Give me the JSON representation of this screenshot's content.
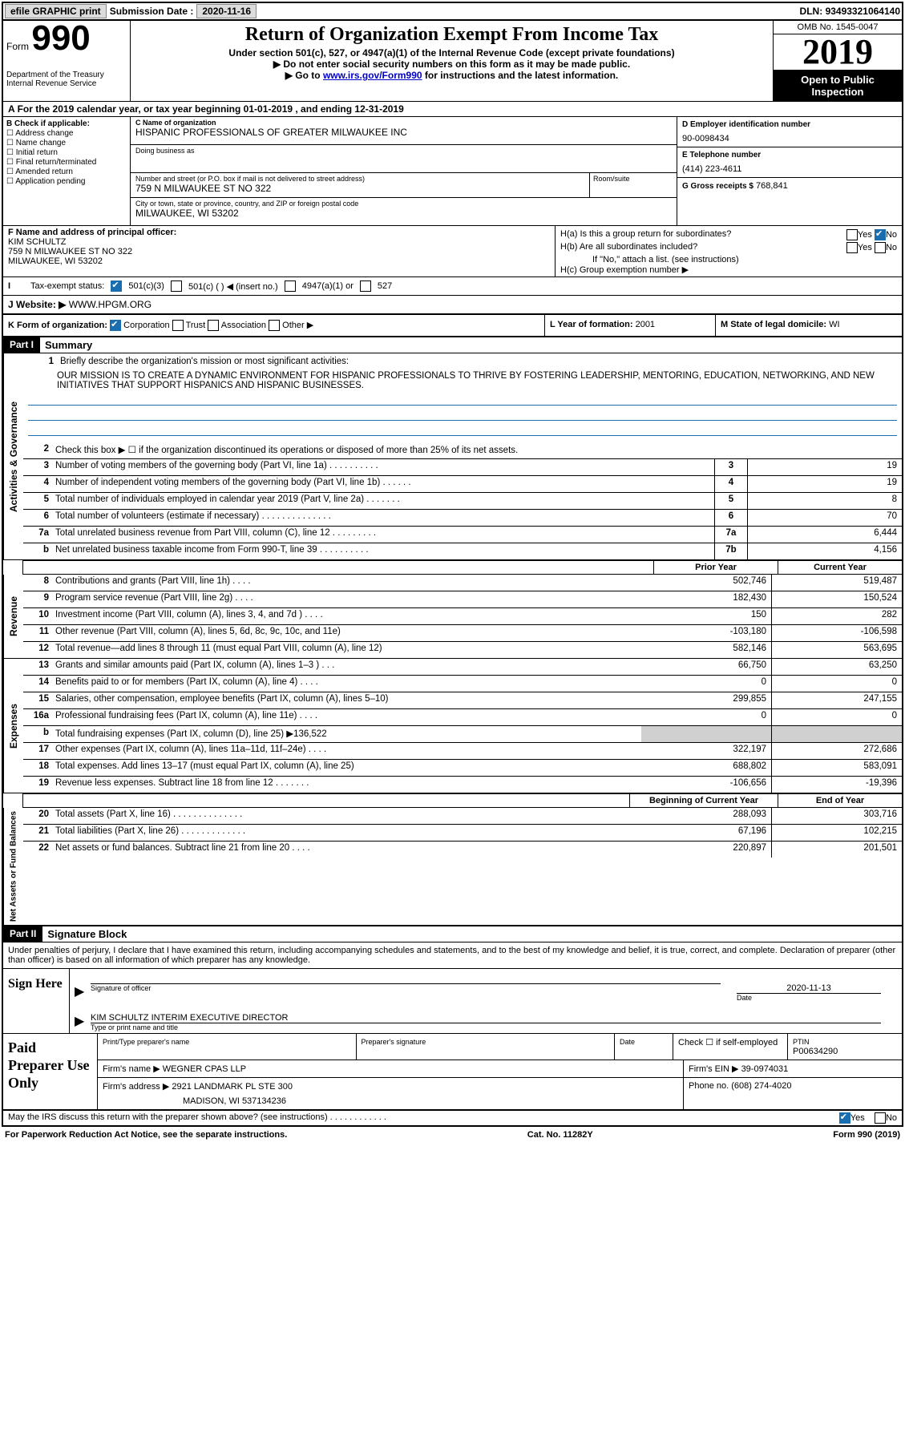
{
  "topbar": {
    "efile": "efile GRAPHIC print",
    "submission_label": "Submission Date :",
    "submission_date": "2020-11-16",
    "dln_label": "DLN:",
    "dln": "93493321064140"
  },
  "header": {
    "form_label": "Form",
    "form_num": "990",
    "dept": "Department of the Treasury\nInternal Revenue Service",
    "title": "Return of Organization Exempt From Income Tax",
    "sub1": "Under section 501(c), 527, or 4947(a)(1) of the Internal Revenue Code (except private foundations)",
    "sub2": "Do not enter social security numbers on this form as it may be made public.",
    "sub3_pre": "Go to ",
    "sub3_link": "www.irs.gov/Form990",
    "sub3_post": " for instructions and the latest information.",
    "omb": "OMB No. 1545-0047",
    "year": "2019",
    "open": "Open to Public Inspection"
  },
  "lineA": "For the 2019 calendar year, or tax year beginning 01-01-2019    , and ending 12-31-2019",
  "B": {
    "label": "B Check if applicable:",
    "opts": [
      "Address change",
      "Name change",
      "Initial return",
      "Final return/terminated",
      "Amended return",
      "Application pending"
    ]
  },
  "C": {
    "name_lbl": "C Name of organization",
    "name": "HISPANIC PROFESSIONALS OF GREATER MILWAUKEE INC",
    "dba_lbl": "Doing business as",
    "dba": "",
    "addr_lbl": "Number and street (or P.O. box if mail is not delivered to street address)",
    "addr": "759 N MILWAUKEE ST NO 322",
    "room_lbl": "Room/suite",
    "city_lbl": "City or town, state or province, country, and ZIP or foreign postal code",
    "city": "MILWAUKEE, WI  53202"
  },
  "D": {
    "lbl": "D Employer identification number",
    "val": "90-0098434"
  },
  "E": {
    "lbl": "E Telephone number",
    "val": "(414) 223-4611"
  },
  "G": {
    "lbl": "G Gross receipts $",
    "val": "768,841"
  },
  "F": {
    "lbl": "F  Name and address of principal officer:",
    "name": "KIM SCHULTZ",
    "addr1": "759 N MILWAUKEE ST NO 322",
    "addr2": "MILWAUKEE, WI  53202"
  },
  "H": {
    "a": "H(a)  Is this a group return for subordinates?",
    "b": "H(b)  Are all subordinates included?",
    "note": "If \"No,\" attach a list. (see instructions)",
    "c": "H(c)  Group exemption number ▶",
    "yes": "Yes",
    "no": "No"
  },
  "I": {
    "lbl": "Tax-exempt status:",
    "opts": [
      "501(c)(3)",
      "501(c) (  ) ◀ (insert no.)",
      "4947(a)(1) or",
      "527"
    ]
  },
  "J": {
    "lbl": "J",
    "txt": "Website: ▶",
    "val": "WWW.HPGM.ORG"
  },
  "K": {
    "lbl": "K Form of organization:",
    "opts": [
      "Corporation",
      "Trust",
      "Association",
      "Other ▶"
    ]
  },
  "L": {
    "lbl": "L Year of formation:",
    "val": "2001"
  },
  "M": {
    "lbl": "M State of legal domicile:",
    "val": "WI"
  },
  "part1": {
    "hdr": "Part I",
    "title": "Summary",
    "line1_lbl": "Briefly describe the organization's mission or most significant activities:",
    "mission": "OUR MISSION IS TO CREATE A DYNAMIC ENVIRONMENT FOR HISPANIC PROFESSIONALS TO THRIVE BY FOSTERING LEADERSHIP, MENTORING, EDUCATION, NETWORKING, AND NEW INITIATIVES THAT SUPPORT HISPANICS AND HISPANIC BUSINESSES.",
    "line2": "Check this box ▶ ☐  if the organization discontinued its operations or disposed of more than 25% of its net assets."
  },
  "gov": {
    "label": "Activities & Governance",
    "rows": [
      {
        "n": "3",
        "t": "Number of voting members of the governing body (Part VI, line 1a)   .    .    .    .    .    .    .    .    .    .",
        "box": "3",
        "v": "19"
      },
      {
        "n": "4",
        "t": "Number of independent voting members of the governing body (Part VI, line 1b)   .    .    .    .    .    .",
        "box": "4",
        "v": "19"
      },
      {
        "n": "5",
        "t": "Total number of individuals employed in calendar year 2019 (Part V, line 2a)   .    .    .    .    .    .    .",
        "box": "5",
        "v": "8"
      },
      {
        "n": "6",
        "t": "Total number of volunteers (estimate if necessary)    .    .    .    .    .    .    .    .    .    .    .    .    .    .",
        "box": "6",
        "v": "70"
      },
      {
        "n": "7a",
        "t": "Total unrelated business revenue from Part VIII, column (C), line 12   .    .    .    .    .    .    .    .    .",
        "box": "7a",
        "v": "6,444"
      },
      {
        "n": "b",
        "t": "Net unrelated business taxable income from Form 990-T, line 39    .    .    .    .    .    .    .    .    .    .",
        "box": "7b",
        "v": "4,156"
      }
    ]
  },
  "colhdrs": {
    "prior": "Prior Year",
    "current": "Current Year"
  },
  "rev": {
    "label": "Revenue",
    "rows": [
      {
        "n": "8",
        "t": "Contributions and grants (Part VIII, line 1h)   .    .    .    .",
        "p": "502,746",
        "c": "519,487"
      },
      {
        "n": "9",
        "t": "Program service revenue (Part VIII, line 2g)    .    .    .    .",
        "p": "182,430",
        "c": "150,524"
      },
      {
        "n": "10",
        "t": "Investment income (Part VIII, column (A), lines 3, 4, and 7d )   .    .    .    .",
        "p": "150",
        "c": "282"
      },
      {
        "n": "11",
        "t": "Other revenue (Part VIII, column (A), lines 5, 6d, 8c, 9c, 10c, and 11e)",
        "p": "-103,180",
        "c": "-106,598"
      },
      {
        "n": "12",
        "t": "Total revenue—add lines 8 through 11 (must equal Part VIII, column (A), line 12)",
        "p": "582,146",
        "c": "563,695"
      }
    ]
  },
  "exp": {
    "label": "Expenses",
    "rows": [
      {
        "n": "13",
        "t": "Grants and similar amounts paid (Part IX, column (A), lines 1–3 )   .    .    .",
        "p": "66,750",
        "c": "63,250"
      },
      {
        "n": "14",
        "t": "Benefits paid to or for members (Part IX, column (A), line 4)   .    .    .    .",
        "p": "0",
        "c": "0"
      },
      {
        "n": "15",
        "t": "Salaries, other compensation, employee benefits (Part IX, column (A), lines 5–10)",
        "p": "299,855",
        "c": "247,155"
      },
      {
        "n": "16a",
        "t": "Professional fundraising fees (Part IX, column (A), line 11e)   .    .    .    .",
        "p": "0",
        "c": "0"
      },
      {
        "n": "b",
        "t": "Total fundraising expenses (Part IX, column (D), line 25) ▶136,522",
        "p": "",
        "c": "",
        "shaded": true
      },
      {
        "n": "17",
        "t": "Other expenses (Part IX, column (A), lines 11a–11d, 11f–24e)   .    .    .    .",
        "p": "322,197",
        "c": "272,686"
      },
      {
        "n": "18",
        "t": "Total expenses. Add lines 13–17 (must equal Part IX, column (A), line 25)",
        "p": "688,802",
        "c": "583,091"
      },
      {
        "n": "19",
        "t": "Revenue less expenses. Subtract line 18 from line 12   .    .    .    .    .    .    .",
        "p": "-106,656",
        "c": "-19,396"
      }
    ]
  },
  "colhdrs2": {
    "begin": "Beginning of Current Year",
    "end": "End of Year"
  },
  "net": {
    "label": "Net Assets or Fund Balances",
    "rows": [
      {
        "n": "20",
        "t": "Total assets (Part X, line 16)   .    .    .    .    .    .    .    .    .    .    .    .    .    .",
        "p": "288,093",
        "c": "303,716"
      },
      {
        "n": "21",
        "t": "Total liabilities (Part X, line 26)   .    .    .    .    .    .    .    .    .    .    .    .    .",
        "p": "67,196",
        "c": "102,215"
      },
      {
        "n": "22",
        "t": "Net assets or fund balances. Subtract line 21 from line 20   .    .    .    .",
        "p": "220,897",
        "c": "201,501"
      }
    ]
  },
  "part2": {
    "hdr": "Part II",
    "title": "Signature Block",
    "penalty": "Under penalties of perjury, I declare that I have examined this return, including accompanying schedules and statements, and to the best of my knowledge and belief, it is true, correct, and complete. Declaration of preparer (other than officer) is based on all information of which preparer has any knowledge."
  },
  "sign": {
    "here": "Sign Here",
    "sig_lbl": "Signature of officer",
    "date_lbl": "Date",
    "date": "2020-11-13",
    "name": "KIM SCHULTZ  INTERIM EXECUTIVE DIRECTOR",
    "name_lbl": "Type or print name and title"
  },
  "paid": {
    "title": "Paid Preparer Use Only",
    "prep_name_lbl": "Print/Type preparer's name",
    "prep_sig_lbl": "Preparer's signature",
    "date_lbl": "Date",
    "check_lbl": "Check ☐  if self-employed",
    "ptin_lbl": "PTIN",
    "ptin": "P00634290",
    "firm_name_lbl": "Firm's name    ▶",
    "firm_name": "WEGNER CPAS LLP",
    "firm_ein_lbl": "Firm's EIN ▶",
    "firm_ein": "39-0974031",
    "firm_addr_lbl": "Firm's address ▶",
    "firm_addr1": "2921 LANDMARK PL STE 300",
    "firm_addr2": "MADISON, WI  537134236",
    "phone_lbl": "Phone no.",
    "phone": "(608) 274-4020"
  },
  "footer": {
    "discuss": "May the IRS discuss this return with the preparer shown above? (see instructions)    .    .    .    .    .    .    .    .    .    .    .    .",
    "yes": "Yes",
    "no": "No",
    "paperwork": "For Paperwork Reduction Act Notice, see the separate instructions.",
    "cat": "Cat. No. 11282Y",
    "form": "Form 990 (2019)"
  }
}
